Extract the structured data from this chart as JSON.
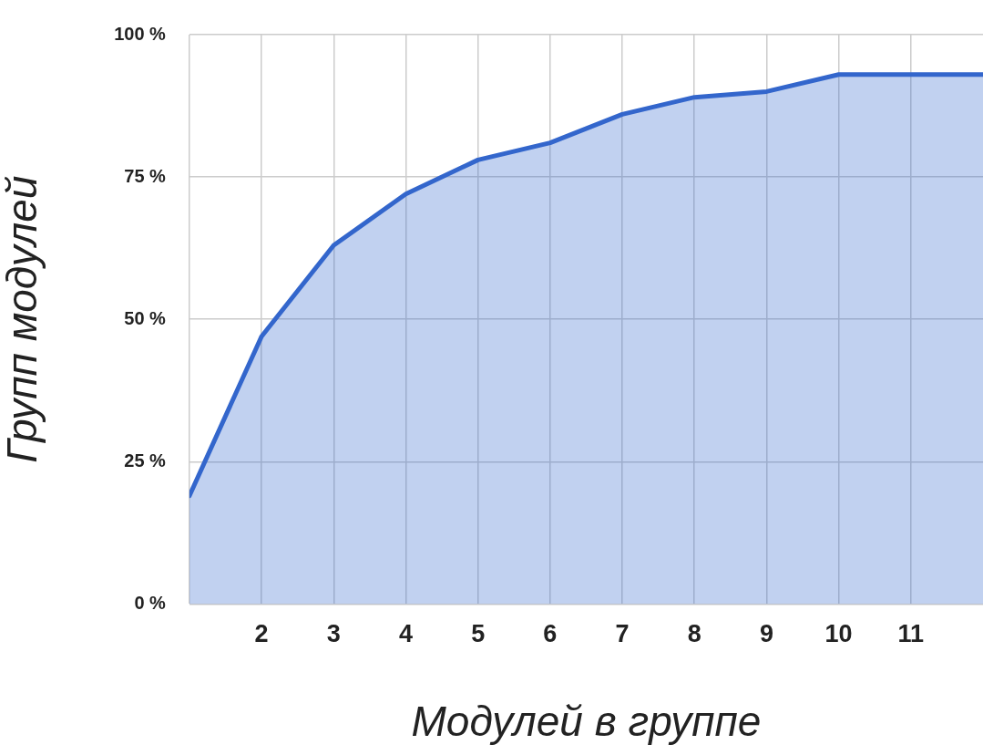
{
  "chart_data": {
    "type": "area",
    "xlabel": "Модулей в группе",
    "ylabel": "Групп модулей",
    "x": [
      1,
      2,
      3,
      4,
      5,
      6,
      7,
      8,
      9,
      10,
      11,
      12
    ],
    "series": [
      {
        "color": "#3366cc",
        "values": [
          19,
          47,
          63,
          72,
          78,
          81,
          86,
          89,
          90,
          93,
          93,
          93
        ]
      }
    ],
    "xlim": [
      1,
      12
    ],
    "xticks": [
      2,
      3,
      4,
      5,
      6,
      7,
      8,
      9,
      10,
      11
    ],
    "ylim": [
      0,
      100
    ],
    "yticks": [
      {
        "value": 0,
        "label": "0 %"
      },
      {
        "value": 25,
        "label": "25 %"
      },
      {
        "value": 50,
        "label": "50 %"
      },
      {
        "value": 75,
        "label": "75 %"
      },
      {
        "value": 100,
        "label": "100 %"
      }
    ],
    "grid": true,
    "legend": false,
    "marker": "none",
    "line_style": "solid"
  }
}
